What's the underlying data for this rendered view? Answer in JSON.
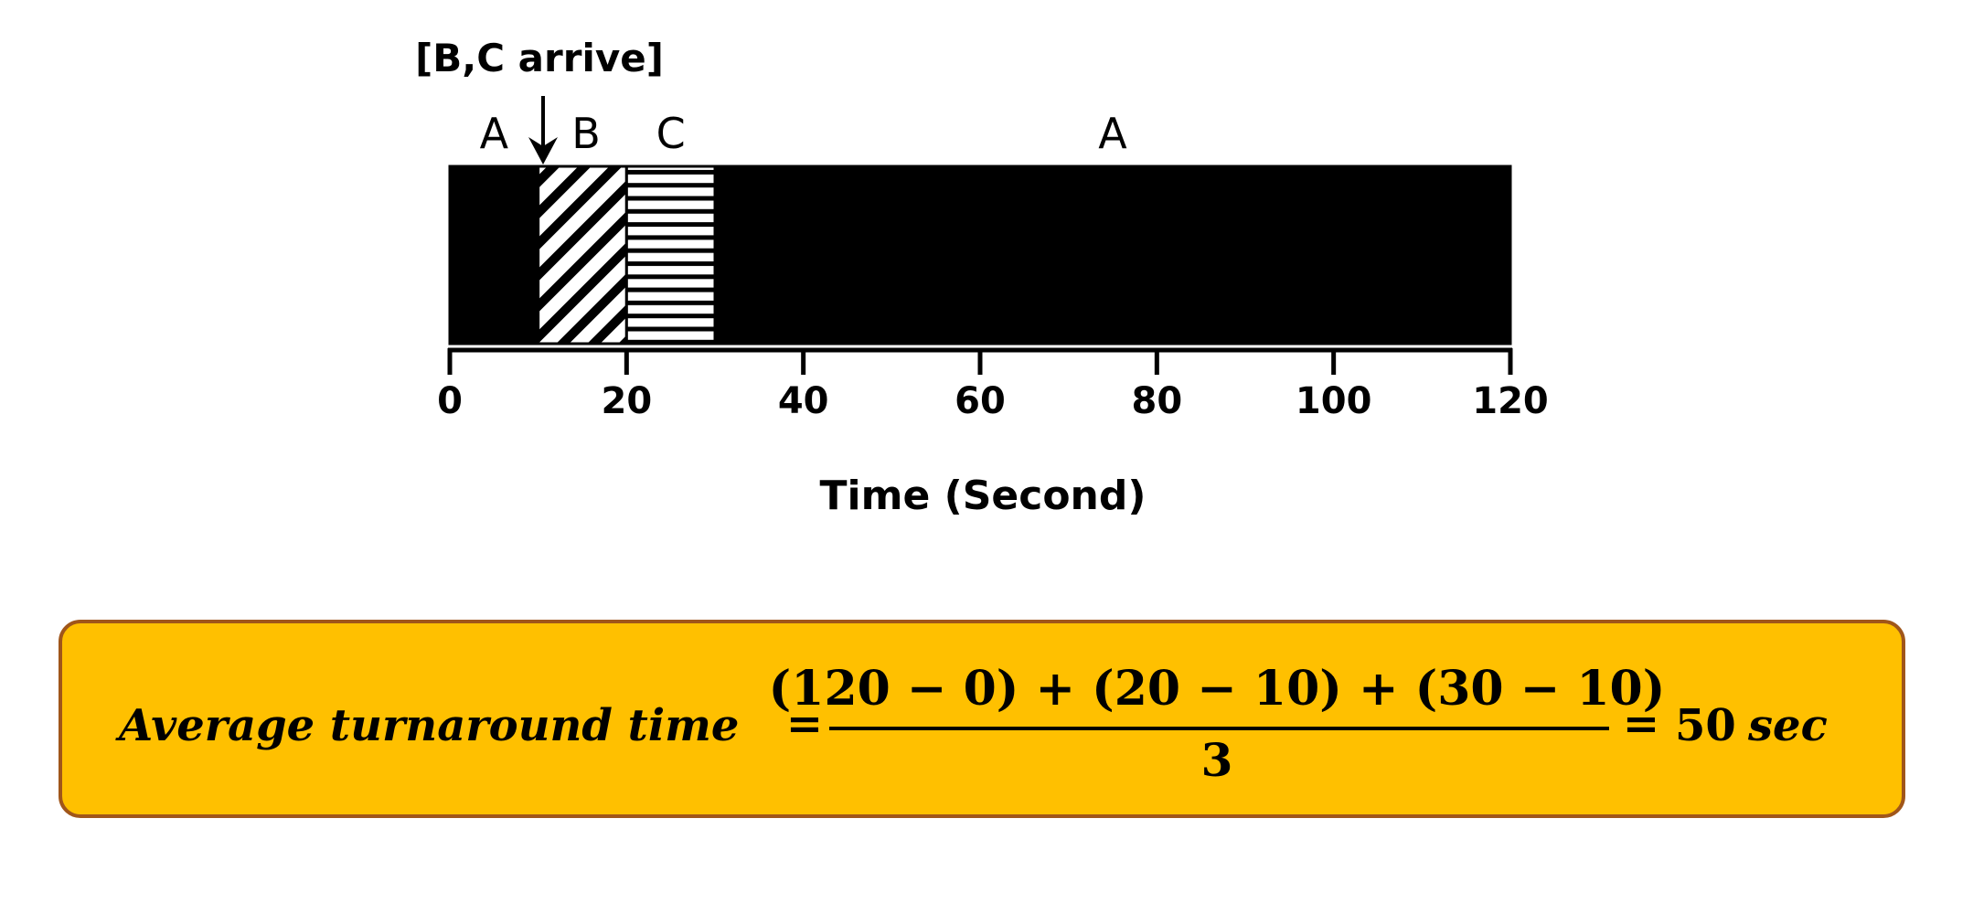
{
  "timeline": {
    "arrival_annotation": "[B,C arrive]",
    "arrival_time": 10,
    "axis": {
      "label": "Time (Second)",
      "min": 0,
      "max": 120,
      "ticks": [
        {
          "value": 0,
          "label": "0"
        },
        {
          "value": 20,
          "label": "20"
        },
        {
          "value": 40,
          "label": "40"
        },
        {
          "value": 60,
          "label": "60"
        },
        {
          "value": 80,
          "label": "80"
        },
        {
          "value": 100,
          "label": "100"
        },
        {
          "value": 120,
          "label": "120"
        }
      ]
    },
    "segments": [
      {
        "job": "A",
        "start": 0,
        "end": 10,
        "pattern": "solid"
      },
      {
        "job": "B",
        "start": 10,
        "end": 20,
        "pattern": "diagonal"
      },
      {
        "job": "C",
        "start": 20,
        "end": 30,
        "pattern": "horizontal"
      },
      {
        "job": "A",
        "start": 30,
        "end": 120,
        "pattern": "solid"
      }
    ]
  },
  "formula": {
    "lhs": "Average turnaround time",
    "equals": "=",
    "numerator": "(120 − 0) + (20 − 10) + (30 − 10)",
    "denominator": "3",
    "result_value": "50",
    "result_unit": "sec"
  },
  "colors": {
    "bar_fill": "#000000",
    "formula_box_fill": "#FFC000",
    "formula_box_border": "#A0561A"
  }
}
